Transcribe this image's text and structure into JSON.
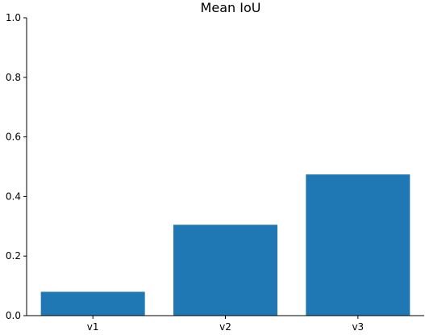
{
  "chart_data": {
    "type": "bar",
    "title": "Mean IoU",
    "xlabel": "",
    "ylabel": "",
    "categories": [
      "v1",
      "v2",
      "v3"
    ],
    "values": [
      0.08,
      0.305,
      0.474
    ],
    "ylim": [
      0,
      1.0
    ],
    "yticks": [
      "0.0",
      "0.2",
      "0.4",
      "0.6",
      "0.8",
      "1.0"
    ],
    "grid": false,
    "bar_color": "#1f77b4"
  }
}
